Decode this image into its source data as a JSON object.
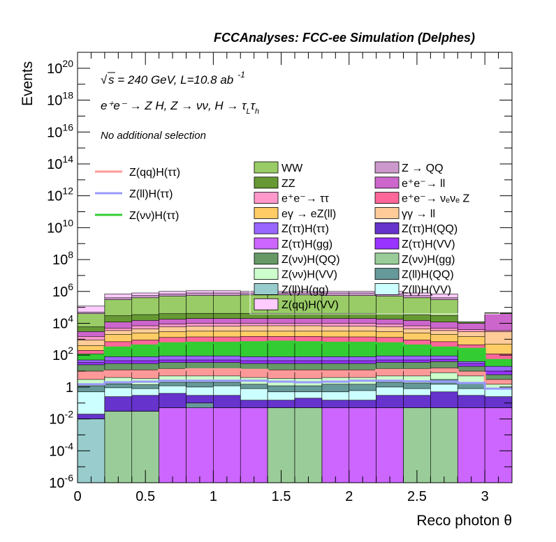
{
  "header": {
    "title": "FCCAnalyses: FCC-ee Simulation (Delphes)"
  },
  "annotations": {
    "energy_prefix": "s",
    "energy_text": " = 240 GeV, L=10.8 ab",
    "energy_exp": "-1",
    "process": "e⁺e⁻ → Z H, Z → νν, H → τ",
    "process_sub1": "L",
    "process_tau2": "τ",
    "process_sub2": "h",
    "selection": "No additional selection"
  },
  "colors": {
    "frame": "#000000",
    "zqq_line": "#ff9999",
    "zll_line": "#9999ff",
    "zvv_line": "#33cc33",
    "bg": "#ffffff"
  },
  "chart_data": {
    "type": "histogram-stacked-log",
    "title": "FCCAnalyses: FCC-ee Simulation (Delphes)",
    "xlabel": "Reco photon θ",
    "ylabel": "Events",
    "xlim": [
      0,
      3.2
    ],
    "ylim": [
      1e-06,
      1e+21
    ],
    "log_y": true,
    "x_ticks": [
      "0",
      "0.5",
      "1",
      "1.5",
      "2",
      "2.5",
      "3"
    ],
    "x_tick_values": [
      0,
      0.5,
      1,
      1.5,
      2,
      2.5,
      3
    ],
    "y_ticks": [
      "10^-6",
      "10^-4",
      "10^-2",
      "1",
      "10^2",
      "10^4",
      "10^6",
      "10^8",
      "10^10",
      "10^12",
      "10^14",
      "10^16",
      "10^18",
      "10^20"
    ],
    "y_tick_exps": [
      -6,
      -4,
      -2,
      0,
      2,
      4,
      6,
      8,
      10,
      12,
      14,
      16,
      18,
      20
    ],
    "bin_edges": [
      0,
      0.2,
      0.4,
      0.6,
      0.8,
      1.0,
      1.2,
      1.4,
      1.6,
      1.8,
      2.0,
      2.2,
      2.4,
      2.6,
      2.8,
      3.0,
      3.2
    ],
    "stack_layers": [
      {
        "name": "Z(ll)H(gg)",
        "color": "#99cccc",
        "top": [
          0.01,
          1e-06,
          1e-06,
          1e-06,
          1e-06,
          1e-06,
          1e-06,
          1e-06,
          1e-06,
          1e-06,
          1e-06,
          1e-06,
          1e-06,
          1e-06,
          1e-06,
          1e-06
        ]
      },
      {
        "name": "Z(νν)H(gg)",
        "color": "#99cc99",
        "top": [
          0.01,
          0.03,
          0.03,
          1e-06,
          1e-06,
          1e-06,
          1e-06,
          0.05,
          0.05,
          1e-06,
          1e-06,
          1e-06,
          0.05,
          0.05,
          1e-06,
          1e-06
        ]
      },
      {
        "name": "Z(ττ)H(gg)",
        "color": "#cc66ff",
        "top": [
          0.01,
          0.03,
          0.03,
          0.05,
          0.05,
          0.05,
          0.05,
          0.05,
          0.05,
          0.05,
          0.05,
          0.05,
          0.05,
          0.05,
          0.05,
          0.05
        ]
      },
      {
        "name": "Z(ll)H(QQ)",
        "color": "#669999",
        "top": [
          0.01,
          0.03,
          0.03,
          0.05,
          0.1,
          0.05,
          0.05,
          0.05,
          0.05,
          0.05,
          0.05,
          0.05,
          0.05,
          0.05,
          0.05,
          0.05
        ]
      },
      {
        "name": "Z(ττ)H(QQ)",
        "color": "#6633cc",
        "top": [
          0.02,
          0.25,
          0.3,
          0.4,
          0.3,
          0.3,
          0.15,
          0.15,
          0.2,
          0.15,
          0.15,
          0.3,
          0.3,
          0.5,
          0.3,
          0.25
        ]
      },
      {
        "name": "Z(ll)H(VV)",
        "color": "#ccffff",
        "top": [
          0.5,
          0.9,
          0.8,
          1.2,
          1.0,
          1.2,
          0.8,
          0.5,
          0.5,
          0.5,
          0.6,
          1.0,
          0.8,
          1.5,
          0.8,
          0.8
        ]
      },
      {
        "name": "Z(ll)H(ττ)",
        "color": "#669999",
        "top": [
          1.2,
          1.6,
          1.4,
          2.0,
          2.0,
          2.0,
          1.5,
          1.2,
          1.2,
          1.5,
          1.5,
          2.0,
          1.8,
          3.0,
          2.0,
          0.8
        ]
      },
      {
        "name": "Z(νν)H(VV)",
        "color": "#ccffcc",
        "top": [
          3.0,
          4.0,
          3.5,
          5.0,
          5.0,
          5.0,
          4.0,
          3.5,
          3.5,
          4.0,
          4.0,
          5.0,
          5.0,
          8.0,
          5.0,
          1.5
        ]
      },
      {
        "name": "Z(qq)H(ττ)",
        "color": "#ff9999",
        "top": [
          10,
          12,
          12,
          14,
          14,
          14,
          12,
          12,
          12,
          12,
          12,
          14,
          14,
          16,
          10,
          3
        ]
      },
      {
        "name": "Z(νν)H(QQ)",
        "color": "#669966",
        "top": [
          25,
          30,
          30,
          35,
          35,
          35,
          30,
          30,
          30,
          30,
          30,
          35,
          35,
          40,
          20,
          6
        ]
      },
      {
        "name": "Z(ττ)H(VV)",
        "color": "#9933ff",
        "top": [
          35,
          45,
          45,
          50,
          50,
          50,
          45,
          45,
          45,
          45,
          45,
          50,
          50,
          55,
          30,
          10
        ]
      },
      {
        "name": "Z(ττ)H(ττ)",
        "color": "#9966ff",
        "top": [
          50,
          80,
          80,
          90,
          90,
          90,
          80,
          80,
          80,
          80,
          80,
          90,
          90,
          90,
          40,
          20
        ]
      },
      {
        "name": "Z(νν)H(ττ)",
        "color": "#33cc33",
        "top": [
          120,
          300,
          400,
          600,
          650,
          650,
          700,
          750,
          700,
          650,
          650,
          600,
          400,
          300,
          250,
          50
        ]
      },
      {
        "name": "e⁺e⁻ → ν_e ν_e Z",
        "color": "#ff6699",
        "top": [
          200,
          700,
          900,
          1300,
          1400,
          1400,
          1500,
          1500,
          1500,
          1400,
          1400,
          1300,
          900,
          700,
          450,
          120
        ]
      },
      {
        "name": "eγ → eZ(ll)",
        "color": "#ffcc66",
        "top": [
          400,
          2000,
          2500,
          3000,
          3200,
          3200,
          3200,
          3200,
          3200,
          3200,
          3200,
          3000,
          2500,
          2000,
          1500,
          500
        ]
      },
      {
        "name": "γγ → ll",
        "color": "#ffcc99",
        "top": [
          900,
          3500,
          4500,
          6000,
          6500,
          6500,
          7000,
          7000,
          7000,
          6500,
          6500,
          6000,
          4500,
          3500,
          3000,
          3000
        ]
      },
      {
        "name": "e⁺e⁻ → ττ",
        "color": "#ff99cc",
        "top": [
          1500,
          5000,
          7000,
          9000,
          10000,
          10000,
          10000,
          10000,
          10000,
          10000,
          10000,
          9000,
          7000,
          5000,
          4000,
          3500
        ]
      },
      {
        "name": "e⁺e⁻ → ll",
        "color": "#cc66cc",
        "top": [
          3000,
          12000,
          15000,
          18000,
          20000,
          20000,
          20000,
          20000,
          20000,
          20000,
          20000,
          18000,
          15000,
          12000,
          10000,
          40000
        ]
      },
      {
        "name": "ZZ",
        "color": "#669933",
        "top": [
          6000,
          30000,
          35000,
          40000,
          42000,
          42000,
          42000,
          42000,
          42000,
          42000,
          42000,
          40000,
          35000,
          30000,
          12000,
          45000
        ]
      },
      {
        "name": "WW",
        "color": "#99cc66",
        "top": [
          40000,
          300000,
          400000,
          500000,
          550000,
          550000,
          600000,
          600000,
          600000,
          550000,
          550000,
          500000,
          400000,
          300000,
          12000,
          45000
        ]
      },
      {
        "name": "Z → QQ",
        "color": "#cc99cc",
        "top": [
          50000,
          400000,
          550000,
          700000,
          800000,
          800000,
          800000,
          800000,
          800000,
          800000,
          800000,
          700000,
          550000,
          400000,
          12000,
          45000
        ]
      },
      {
        "name": "Z(qq)H(VV)",
        "color": "#ffccff",
        "top": [
          120000,
          700000,
          800000,
          1000000,
          1100000,
          1100000,
          1000000,
          1000000,
          1000000,
          1000000,
          1000000,
          1000000,
          800000,
          700000,
          12000,
          45000
        ]
      }
    ],
    "signal_lines": [
      {
        "name": "Z(qq)H(ττ)",
        "color": "#ff9999",
        "values": [
          6,
          10,
          10,
          12,
          13,
          13,
          12,
          10,
          10,
          10,
          10,
          12,
          12,
          12,
          8,
          2
        ]
      },
      {
        "name": "Z(ll)H(ττ)",
        "color": "#9999ff",
        "values": [
          1.5,
          2.0,
          2.2,
          2.5,
          2.5,
          2.5,
          2.5,
          2.2,
          2.0,
          2.2,
          2.5,
          2.5,
          2.3,
          2.2,
          1.8,
          0.8
        ]
      },
      {
        "name": "Z(νν)H(ττ)",
        "color": "#33cc33",
        "values": [
          100,
          300,
          400,
          550,
          600,
          600,
          650,
          700,
          650,
          600,
          600,
          550,
          400,
          300,
          250,
          50
        ]
      }
    ],
    "legend_left": [
      {
        "label": "Z(qq)H(ττ)",
        "color": "#ff9999"
      },
      {
        "label": "Z(ll)H(ττ)",
        "color": "#9999ff"
      },
      {
        "label": "Z(νν)H(ττ)",
        "color": "#33cc33"
      }
    ],
    "legend_col1": [
      {
        "label": "WW",
        "color": "#99cc66"
      },
      {
        "label": "ZZ",
        "color": "#669933"
      },
      {
        "label": "e⁺e⁻→ ττ",
        "color": "#ff99cc"
      },
      {
        "label": "eγ → eZ(ll)",
        "color": "#ffcc66"
      },
      {
        "label": "Z(ττ)H(ττ)",
        "color": "#9966ff"
      },
      {
        "label": "Z(ττ)H(gg)",
        "color": "#cc66ff"
      },
      {
        "label": "Z(νν)H(QQ)",
        "color": "#669966"
      },
      {
        "label": "Z(νν)H(VV)",
        "color": "#ccffcc"
      },
      {
        "label": "Z(ll)H(gg)",
        "color": "#99cccc"
      },
      {
        "label": "Z(qq)H(VV)",
        "color": "#ffccff"
      }
    ],
    "legend_col2": [
      {
        "label": "Z → QQ",
        "color": "#cc99cc"
      },
      {
        "label": "e⁺e⁻→ ll",
        "color": "#cc66cc"
      },
      {
        "label": "e⁺e⁻→ νₑνₑ Z",
        "color": "#ff6699"
      },
      {
        "label": "γγ → ll",
        "color": "#ffcc99"
      },
      {
        "label": "Z(ττ)H(QQ)",
        "color": "#6633cc"
      },
      {
        "label": "Z(ττ)H(VV)",
        "color": "#9933ff"
      },
      {
        "label": "Z(νν)H(gg)",
        "color": "#99cc99"
      },
      {
        "label": "Z(ll)H(QQ)",
        "color": "#669999"
      },
      {
        "label": "Z(ll)H(VV)",
        "color": "#ccffff"
      }
    ]
  }
}
